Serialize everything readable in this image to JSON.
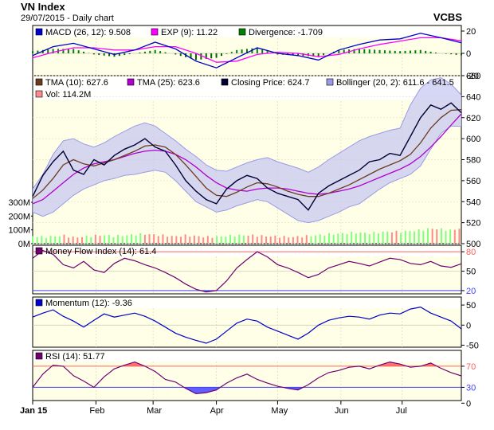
{
  "header": {
    "title": "VN Index",
    "subtitle": "29/07/2015 - Daily chart",
    "brand": "VCBS"
  },
  "x_axis": {
    "labels": [
      {
        "text": "Jan 15",
        "day": 0
      },
      {
        "text": "Feb",
        "day": 31
      },
      {
        "text": "Mar",
        "day": 59
      },
      {
        "text": "Apr",
        "day": 90
      },
      {
        "text": "May",
        "day": 120
      },
      {
        "text": "Jun",
        "day": 151
      },
      {
        "text": "Jul",
        "day": 181
      }
    ],
    "day_range": [
      0,
      210
    ]
  },
  "colors": {
    "plot_bg": "#ffffe8",
    "band_fill": "#c8c8f2",
    "band_line": "#9a9ae6",
    "close": "#000033",
    "tma10": "#6b3b1c",
    "tma25": "#b000d0",
    "macd": "#0000cc",
    "signal": "#ff00ff",
    "div_pos": "#008000",
    "div_neg": "#006600",
    "vol_up": "#7fff7f",
    "vol_down": "#ff8a8a",
    "mfi": "#700070",
    "momentum": "#0000cc",
    "rsi": "#700070",
    "ref_red": "#ff6060",
    "ref_blue": "#4040ff",
    "fill_hi": "#ff7070",
    "fill_lo": "#6060ff"
  },
  "chart_data": [
    {
      "type": "line",
      "panel": "macd",
      "legend": [
        {
          "text": "MACD (26, 12): 9.508",
          "color": "#0000cc"
        },
        {
          "text": "EXP (9): 11.22",
          "color": "#ff00ff"
        },
        {
          "text": "Divergence: -1.709",
          "color": "#008000"
        }
      ],
      "ylim": [
        -20,
        25
      ],
      "ticks": [
        20,
        0,
        -20
      ],
      "series": [
        {
          "name": "MACD",
          "x": [
            0,
            10,
            20,
            30,
            40,
            50,
            60,
            70,
            80,
            90,
            100,
            110,
            120,
            130,
            140,
            150,
            160,
            170,
            180,
            190,
            200,
            210
          ],
          "values": [
            -2,
            6,
            9,
            4,
            -1,
            3,
            10,
            4,
            -7,
            -13,
            -4,
            5,
            0,
            -2,
            -6,
            3,
            8,
            12,
            13,
            18,
            14,
            9.5
          ]
        },
        {
          "name": "EXP",
          "x": [
            0,
            10,
            20,
            30,
            40,
            50,
            60,
            70,
            80,
            90,
            100,
            110,
            120,
            130,
            140,
            150,
            160,
            170,
            180,
            190,
            200,
            210
          ],
          "values": [
            -4,
            1,
            5,
            5,
            3,
            3,
            6,
            6,
            0,
            -8,
            -7,
            -1,
            1,
            0,
            -3,
            -1,
            4,
            8,
            11,
            14,
            14,
            11.2
          ]
        },
        {
          "name": "Divergence",
          "x": [
            0,
            10,
            20,
            30,
            40,
            50,
            60,
            70,
            80,
            90,
            100,
            110,
            120,
            130,
            140,
            150,
            160,
            170,
            180,
            190,
            200,
            210
          ],
          "values": [
            2,
            4,
            4,
            -1,
            -3,
            0,
            3,
            -1,
            -6,
            -4,
            3,
            5,
            -1,
            -2,
            -3,
            3,
            4,
            3,
            2,
            3,
            0,
            -1.7
          ]
        }
      ]
    },
    {
      "type": "line",
      "panel": "price",
      "legend": [
        {
          "text": "TMA (10): 627.6",
          "color": "#6b3b1c"
        },
        {
          "text": "TMA (25): 623.6",
          "color": "#b000d0"
        },
        {
          "text": "Closing Price: 624.7",
          "color": "#000033"
        },
        {
          "text": "Bollinger (20, 2): 611.6 - 641.5",
          "color": "#9a9ae6"
        }
      ],
      "legend2": [
        {
          "text": "Vol: 114.2M",
          "color": "#ff8a8a"
        }
      ],
      "ylim": [
        500,
        660
      ],
      "ticks": [
        660,
        640,
        620,
        600,
        580,
        560,
        540,
        520,
        500
      ],
      "vol_ticks": [
        "300M",
        "200M",
        "100M",
        "0M"
      ],
      "vol_max": 300,
      "x": [
        0,
        5,
        10,
        15,
        20,
        25,
        30,
        35,
        40,
        45,
        50,
        55,
        60,
        65,
        70,
        75,
        80,
        85,
        90,
        95,
        100,
        105,
        110,
        115,
        120,
        125,
        130,
        135,
        140,
        145,
        150,
        155,
        160,
        165,
        170,
        175,
        180,
        185,
        190,
        195,
        200,
        205,
        210
      ],
      "close": [
        545,
        565,
        578,
        588,
        570,
        566,
        580,
        575,
        584,
        590,
        594,
        600,
        592,
        588,
        575,
        560,
        550,
        542,
        538,
        552,
        560,
        565,
        562,
        553,
        548,
        545,
        542,
        532,
        548,
        555,
        560,
        565,
        570,
        578,
        580,
        586,
        584,
        602,
        620,
        632,
        628,
        634,
        624.7
      ],
      "tma10": [
        543,
        551,
        562,
        575,
        580,
        576,
        574,
        577,
        580,
        584,
        588,
        593,
        594,
        592,
        585,
        575,
        564,
        553,
        546,
        545,
        549,
        554,
        558,
        557,
        554,
        550,
        547,
        545,
        545,
        548,
        552,
        556,
        561,
        566,
        571,
        575,
        579,
        585,
        596,
        610,
        620,
        627,
        627.6
      ],
      "tma25": [
        538,
        542,
        550,
        558,
        566,
        572,
        576,
        578,
        580,
        583,
        586,
        588,
        589,
        588,
        585,
        580,
        573,
        565,
        558,
        553,
        551,
        550,
        552,
        553,
        553,
        552,
        550,
        548,
        547,
        548,
        550,
        552,
        555,
        559,
        563,
        567,
        571,
        576,
        583,
        592,
        602,
        613,
        623.6
      ],
      "upper": [
        552,
        566,
        585,
        598,
        600,
        595,
        592,
        596,
        602,
        607,
        612,
        615,
        612,
        605,
        598,
        590,
        583,
        575,
        570,
        569,
        573,
        577,
        580,
        582,
        578,
        575,
        572,
        568,
        573,
        580,
        586,
        592,
        598,
        602,
        605,
        608,
        610,
        632,
        648,
        656,
        658,
        652,
        641.5
      ],
      "lower": [
        530,
        526,
        530,
        538,
        546,
        552,
        556,
        560,
        562,
        565,
        566,
        568,
        570,
        568,
        560,
        550,
        540,
        535,
        530,
        532,
        536,
        539,
        542,
        540,
        534,
        528,
        522,
        520,
        522,
        526,
        530,
        535,
        538,
        545,
        552,
        558,
        562,
        566,
        574,
        590,
        605,
        612,
        611.6
      ],
      "volume": [
        55,
        48,
        52,
        60,
        45,
        50,
        58,
        62,
        55,
        60,
        66,
        70,
        64,
        58,
        52,
        60,
        55,
        48,
        50,
        56,
        60,
        62,
        58,
        54,
        52,
        48,
        50,
        56,
        62,
        68,
        72,
        78,
        80,
        75,
        82,
        88,
        85,
        92,
        98,
        110,
        105,
        96,
        114.2
      ],
      "up": [
        1,
        1,
        1,
        0,
        0,
        1,
        0,
        1,
        1,
        1,
        1,
        0,
        0,
        0,
        0,
        0,
        0,
        0,
        1,
        1,
        1,
        0,
        0,
        0,
        0,
        0,
        0,
        1,
        1,
        1,
        1,
        1,
        1,
        1,
        1,
        0,
        1,
        1,
        1,
        0,
        1,
        0,
        0
      ]
    },
    {
      "type": "line",
      "panel": "mfi",
      "legend": [
        {
          "text": "Money Flow Index (14): 61.4",
          "color": "#700070"
        }
      ],
      "ylim": [
        15,
        90
      ],
      "ticks": [
        80,
        50,
        20
      ],
      "ref": [
        80,
        20
      ],
      "x": [
        0,
        5,
        10,
        15,
        20,
        25,
        30,
        35,
        40,
        45,
        50,
        55,
        60,
        65,
        70,
        75,
        80,
        85,
        90,
        95,
        100,
        105,
        110,
        115,
        120,
        125,
        130,
        135,
        140,
        145,
        150,
        155,
        160,
        165,
        170,
        175,
        180,
        185,
        190,
        195,
        200,
        205,
        210
      ],
      "values": [
        70,
        82,
        76,
        60,
        55,
        65,
        52,
        48,
        62,
        70,
        66,
        60,
        55,
        48,
        40,
        30,
        22,
        18,
        20,
        35,
        55,
        68,
        80,
        72,
        60,
        55,
        48,
        40,
        45,
        55,
        60,
        65,
        62,
        58,
        64,
        70,
        68,
        62,
        60,
        65,
        58,
        56,
        61.4
      ]
    },
    {
      "type": "line",
      "panel": "momentum",
      "legend": [
        {
          "text": "Momentum (12): -9.36",
          "color": "#0000cc"
        }
      ],
      "ylim": [
        -55,
        70
      ],
      "ticks": [
        50,
        0,
        -50
      ],
      "x": [
        0,
        5,
        10,
        15,
        20,
        25,
        30,
        35,
        40,
        45,
        50,
        55,
        60,
        65,
        70,
        75,
        80,
        85,
        90,
        95,
        100,
        105,
        110,
        115,
        120,
        125,
        130,
        135,
        140,
        145,
        150,
        155,
        160,
        165,
        170,
        175,
        180,
        185,
        190,
        195,
        200,
        205,
        210
      ],
      "values": [
        20,
        30,
        38,
        22,
        10,
        -5,
        12,
        28,
        20,
        25,
        30,
        22,
        10,
        -5,
        -20,
        -30,
        -38,
        -45,
        -35,
        -15,
        5,
        15,
        10,
        -5,
        -15,
        -25,
        -35,
        -20,
        0,
        12,
        18,
        22,
        20,
        15,
        25,
        30,
        28,
        40,
        45,
        30,
        20,
        10,
        -9.36
      ]
    },
    {
      "type": "line",
      "panel": "rsi",
      "legend": [
        {
          "text": "RSI (14): 51.77",
          "color": "#700070"
        }
      ],
      "ylim": [
        5,
        100
      ],
      "ticks": [
        70,
        30,
        0
      ],
      "ref": [
        70,
        30
      ],
      "x": [
        0,
        5,
        10,
        15,
        20,
        25,
        30,
        35,
        40,
        45,
        50,
        55,
        60,
        65,
        70,
        75,
        80,
        85,
        90,
        95,
        100,
        105,
        110,
        115,
        120,
        125,
        130,
        135,
        140,
        145,
        150,
        155,
        160,
        165,
        170,
        175,
        180,
        185,
        190,
        195,
        200,
        205,
        210
      ],
      "values": [
        30,
        55,
        72,
        70,
        52,
        42,
        30,
        50,
        65,
        72,
        78,
        70,
        60,
        45,
        40,
        28,
        18,
        20,
        25,
        38,
        48,
        55,
        45,
        38,
        32,
        28,
        25,
        35,
        48,
        58,
        62,
        68,
        70,
        65,
        72,
        78,
        74,
        68,
        70,
        76,
        66,
        58,
        51.77
      ]
    }
  ]
}
